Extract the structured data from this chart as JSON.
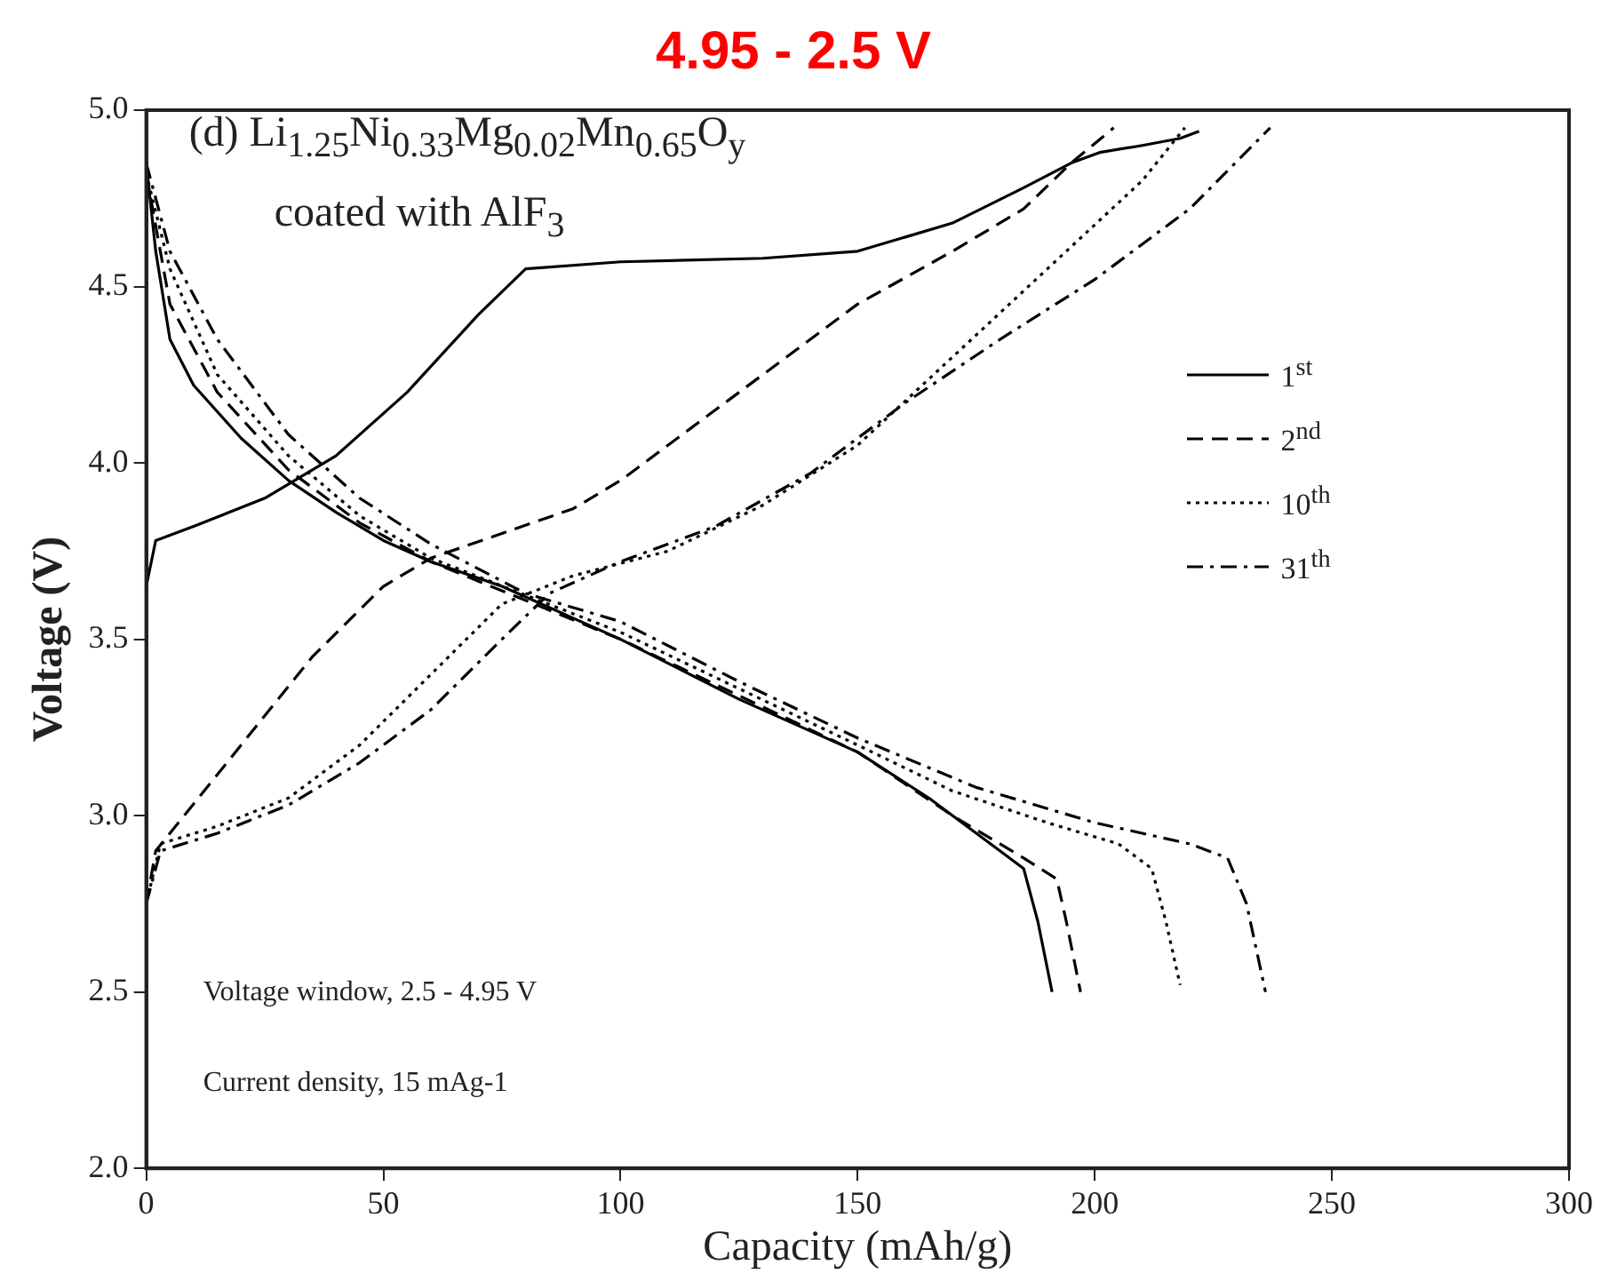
{
  "chart_data": {
    "type": "line",
    "title": "4.95 - 2.5 V",
    "xlabel": "Capacity (mAh/g)",
    "ylabel": "Voltage (V)",
    "xlim": [
      0,
      300
    ],
    "xticks": [
      0,
      50,
      100,
      150,
      200,
      250,
      300
    ],
    "ylim": [
      2,
      5
    ],
    "yticks": [
      {
        "value": 2,
        "label": "2.0"
      },
      {
        "value": 2.5,
        "label": "2.5"
      },
      {
        "value": 3,
        "label": "3.0"
      },
      {
        "value": 3.5,
        "label": "3.5"
      },
      {
        "value": 4,
        "label": "4.0"
      },
      {
        "value": 4.5,
        "label": "4.5"
      },
      {
        "value": 5,
        "label": "5.0"
      }
    ],
    "grid": false,
    "legend": "right",
    "marker": "none",
    "annotations": [
      "(d) Li$_{1.25}$Ni$_{0.33}$Mg$_{0.02}$Mn$_{0.65}$O$_{y}$",
      "coated with AlF$_{3}$",
      "Voltage window, 2.5 - 4.95 V",
      "Current density, 15 mAg-1"
    ],
    "series": [
      {
        "name": "1$^{st}$",
        "color": "#000000",
        "line_style": "solid",
        "x": [
          0,
          2,
          10,
          25,
          40,
          55,
          70,
          80,
          100,
          130,
          150,
          170,
          185,
          195,
          201,
          210,
          218,
          222,
          null,
          0,
          2,
          5,
          10,
          20,
          30,
          40,
          50,
          60,
          75,
          100,
          125,
          150,
          165,
          180,
          185,
          188,
          191
        ],
        "values": [
          3.65,
          3.78,
          3.82,
          3.9,
          4.02,
          4.2,
          4.42,
          4.55,
          4.57,
          4.58,
          4.6,
          4.68,
          4.78,
          4.85,
          4.88,
          4.9,
          4.92,
          4.94,
          null,
          4.85,
          4.6,
          4.35,
          4.22,
          4.07,
          3.95,
          3.86,
          3.78,
          3.72,
          3.65,
          3.5,
          3.33,
          3.18,
          3.05,
          2.9,
          2.85,
          2.7,
          2.5
        ]
      },
      {
        "name": "2$^{nd}$",
        "color": "#000000",
        "line_style": "dashed",
        "x": [
          0,
          2,
          8,
          20,
          35,
          50,
          60,
          75,
          90,
          100,
          115,
          130,
          150,
          170,
          185,
          195,
          204,
          null,
          0,
          5,
          15,
          30,
          45,
          60,
          100,
          150,
          170,
          185,
          192,
          194,
          197
        ],
        "values": [
          2.75,
          2.9,
          3.0,
          3.2,
          3.45,
          3.65,
          3.73,
          3.8,
          3.87,
          3.95,
          4.1,
          4.25,
          4.45,
          4.6,
          4.72,
          4.85,
          4.95,
          null,
          4.82,
          4.45,
          4.2,
          3.98,
          3.83,
          3.72,
          3.5,
          3.18,
          3.0,
          2.88,
          2.82,
          2.7,
          2.5
        ]
      },
      {
        "name": "10$^{th}$",
        "color": "#000000",
        "line_style": "dotted",
        "x": [
          0,
          3,
          15,
          30,
          45,
          60,
          75,
          90,
          110,
          130,
          150,
          170,
          190,
          210,
          219,
          null,
          0,
          5,
          15,
          30,
          45,
          60,
          100,
          150,
          170,
          190,
          205,
          212,
          215,
          218
        ],
        "values": [
          2.75,
          2.92,
          2.97,
          3.05,
          3.2,
          3.4,
          3.6,
          3.68,
          3.75,
          3.88,
          4.05,
          4.3,
          4.55,
          4.8,
          4.95,
          null,
          4.82,
          4.55,
          4.25,
          4.02,
          3.85,
          3.73,
          3.52,
          3.2,
          3.07,
          2.98,
          2.92,
          2.85,
          2.7,
          2.52
        ]
      },
      {
        "name": "31$^{th}$",
        "color": "#000000",
        "line_style": "dashdot",
        "x": [
          0,
          3,
          15,
          30,
          45,
          60,
          75,
          85,
          100,
          120,
          140,
          160,
          180,
          200,
          220,
          237,
          null,
          0,
          5,
          15,
          30,
          45,
          60,
          80,
          100,
          125,
          150,
          175,
          200,
          220,
          228,
          232,
          236
        ],
        "values": [
          2.75,
          2.9,
          2.95,
          3.03,
          3.15,
          3.3,
          3.5,
          3.63,
          3.72,
          3.82,
          3.97,
          4.17,
          4.35,
          4.52,
          4.72,
          4.95,
          null,
          4.85,
          4.6,
          4.35,
          4.08,
          3.9,
          3.77,
          3.63,
          3.55,
          3.38,
          3.22,
          3.08,
          2.98,
          2.92,
          2.88,
          2.75,
          2.5
        ]
      }
    ]
  }
}
